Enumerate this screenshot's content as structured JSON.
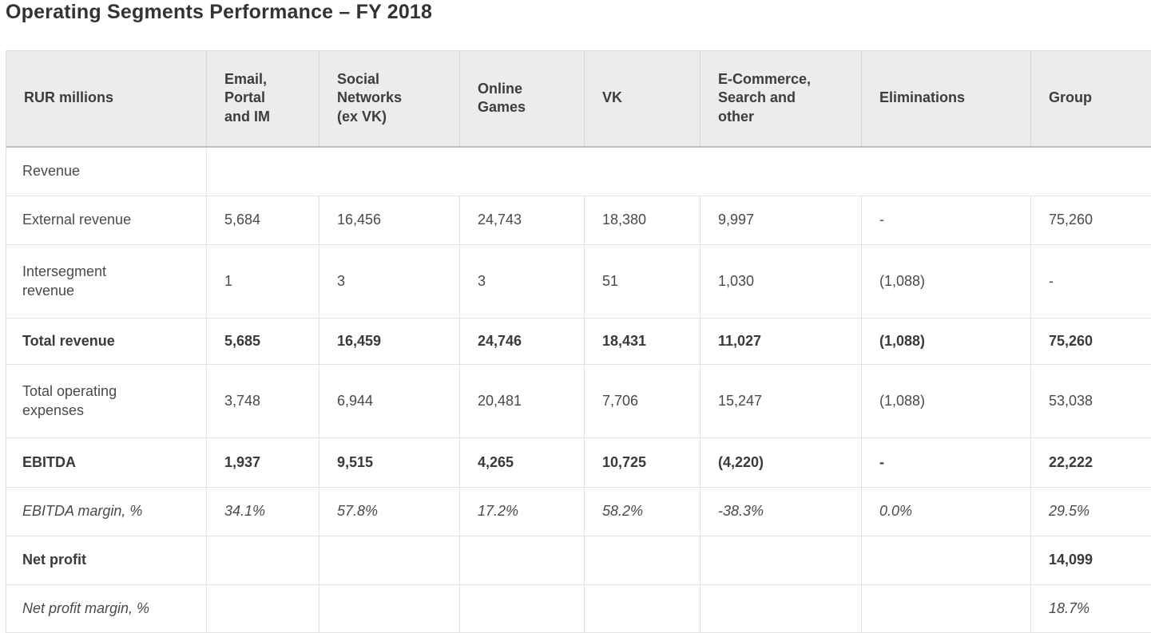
{
  "title": "Operating Segments Performance – FY 2018",
  "table": {
    "header": [
      "RUR millions",
      "Email,\nPortal\nand IM",
      "Social\nNetworks\n(ex VK)",
      "Online\nGames",
      "VK",
      "E-Commerce,\nSearch and\nother",
      "Eliminations",
      "Group"
    ],
    "rows": [
      {
        "label": "Revenue",
        "style": "normal",
        "merged": true,
        "values": []
      },
      {
        "label": "External revenue",
        "style": "normal",
        "merged": false,
        "values": [
          "5,684",
          "16,456",
          "24,743",
          "18,380",
          "9,997",
          "-",
          "75,260"
        ]
      },
      {
        "label": "Intersegment\nrevenue",
        "style": "normal",
        "merged": false,
        "values": [
          "1",
          "3",
          "3",
          "51",
          "1,030",
          "(1,088)",
          "-"
        ]
      },
      {
        "label": "Total revenue",
        "style": "bold",
        "merged": false,
        "values": [
          "5,685",
          "16,459",
          "24,746",
          "18,431",
          "11,027",
          "(1,088)",
          "75,260"
        ]
      },
      {
        "label": "Total operating\nexpenses",
        "style": "normal",
        "merged": false,
        "values": [
          "3,748",
          "6,944",
          "20,481",
          "7,706",
          "15,247",
          "(1,088)",
          "53,038"
        ]
      },
      {
        "label": "EBITDA",
        "style": "bold",
        "merged": false,
        "values": [
          "1,937",
          "9,515",
          "4,265",
          "10,725",
          "(4,220)",
          "-",
          "22,222"
        ]
      },
      {
        "label": "EBITDA margin, %",
        "style": "italic",
        "merged": false,
        "values": [
          "34.1%",
          "57.8%",
          "17.2%",
          "58.2%",
          "-38.3%",
          "0.0%",
          "29.5%"
        ]
      },
      {
        "label": "Net profit",
        "style": "bold",
        "merged": false,
        "values": [
          "",
          "",
          "",
          "",
          "",
          "",
          "14,099"
        ]
      },
      {
        "label": "Net profit margin, %",
        "style": "italic",
        "merged": false,
        "values": [
          "",
          "",
          "",
          "",
          "",
          "",
          "18.7%"
        ]
      }
    ]
  },
  "colors": {
    "header_background": "#ececec",
    "header_bottom_border": "#c2c2c2",
    "row_border": "#e3e3e3",
    "title_text": "#333333",
    "body_text": "#4a4a4a"
  }
}
